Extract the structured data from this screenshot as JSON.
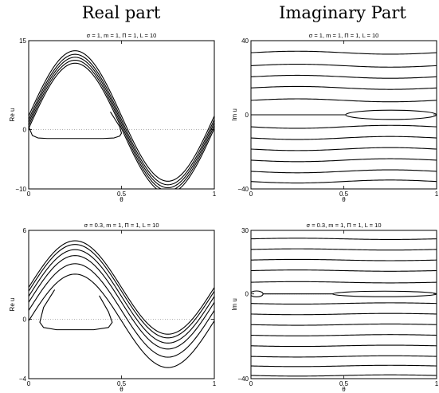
{
  "headers": {
    "left": "Real part",
    "right": "Imaginary Part"
  },
  "chart_data": [
    {
      "id": "re1",
      "type": "line",
      "title": "σ = 1, m = 1, Π = 1, L = 10",
      "xlabel": "θ",
      "ylabel": "Re u",
      "xlim": [
        0,
        1
      ],
      "ylim": [
        -10,
        15
      ],
      "xticks": [
        "0",
        "0.5",
        "1"
      ],
      "yticks": [
        "15",
        "0",
        "−10"
      ],
      "series": [
        {
          "kind": "sine",
          "A": 11.0,
          "c": 2.3
        },
        {
          "kind": "sine",
          "A": 11.0,
          "c": 1.7
        },
        {
          "kind": "sine",
          "A": 11.0,
          "c": 1.2
        },
        {
          "kind": "sine",
          "A": 11.0,
          "c": 0.7
        },
        {
          "kind": "sine",
          "A": 11.0,
          "c": 0.2
        },
        {
          "kind": "loop",
          "x": [
            0,
            0.02,
            0.05,
            0.1,
            0.2,
            0.3,
            0.4,
            0.46,
            0.49,
            0.5,
            0.49,
            0.46,
            0.44
          ],
          "y": [
            0.5,
            -1.0,
            -1.4,
            -1.5,
            -1.5,
            -1.5,
            -1.5,
            -1.4,
            -1.1,
            -0.6,
            0.5,
            2.0,
            3.0
          ]
        }
      ]
    },
    {
      "id": "im1",
      "type": "line",
      "title": "σ = 1, m = 1, Π = 1, L = 10",
      "xlabel": "θ",
      "ylabel": "Im u",
      "xlim": [
        0,
        1
      ],
      "ylim": [
        -40,
        40
      ],
      "xticks": [
        "0",
        "0.5",
        "1"
      ],
      "yticks": [
        "40",
        "0",
        "−40"
      ],
      "series": [
        {
          "kind": "flat",
          "levels": [
            33.5,
            26.5,
            20.5,
            14.5,
            7.8,
            -6.5,
            -12.5,
            -18.5,
            -24.5,
            -30.5,
            -36.0
          ],
          "wobble": 0.8
        },
        {
          "kind": "zero",
          "x0": 0.5
        },
        {
          "kind": "ellipse",
          "cx": 0.755,
          "cy": 0,
          "rx": 0.245,
          "ry": 2.5
        }
      ]
    },
    {
      "id": "re2",
      "type": "line",
      "title": "σ = 0.3, m = 1, Π = 1, L = 10",
      "xlabel": "θ",
      "ylabel": "Re u",
      "xlim": [
        0,
        1
      ],
      "ylim": [
        -4,
        6
      ],
      "xticks": [
        "0",
        "0.5",
        "1"
      ],
      "yticks": [
        "6",
        "0",
        "−4"
      ],
      "series": [
        {
          "kind": "sine",
          "A": 3.15,
          "c": 2.15
        },
        {
          "kind": "sine",
          "A": 3.15,
          "c": 1.9
        },
        {
          "kind": "sine",
          "A": 3.15,
          "c": 1.55
        },
        {
          "kind": "sine",
          "A": 3.15,
          "c": 1.15
        },
        {
          "kind": "sine",
          "A": 3.15,
          "c": 0.6
        },
        {
          "kind": "sine",
          "A": 3.15,
          "c": -0.1
        },
        {
          "kind": "loop",
          "x": [
            0.14,
            0.08,
            0.06,
            0.08,
            0.15,
            0.25,
            0.35,
            0.43,
            0.45,
            0.43,
            0.38
          ],
          "y": [
            2.0,
            0.8,
            -0.2,
            -0.55,
            -0.7,
            -0.7,
            -0.7,
            -0.55,
            -0.2,
            0.5,
            1.6
          ]
        }
      ]
    },
    {
      "id": "im2",
      "type": "line",
      "title": "σ = 0.3, m = 1, Π = 1, L = 10",
      "xlabel": "θ",
      "ylabel": "Im u",
      "xlim": [
        0,
        1
      ],
      "ylim": [
        -40,
        30
      ],
      "xticks": [
        "0",
        "0.5",
        "1"
      ],
      "yticks": [
        "30",
        "0",
        "−40"
      ],
      "series": [
        {
          "kind": "flat",
          "levels": [
            26.0,
            21.0,
            16.0,
            11.0,
            5.5,
            -4.5,
            -9.5,
            -14.5,
            -19.5,
            -24.5,
            -29.5,
            -34.0,
            -38.5
          ],
          "wobble": 0.3
        },
        {
          "kind": "zero",
          "x0": 0.0
        },
        {
          "kind": "ellipse",
          "cx": 0.72,
          "cy": 0,
          "rx": 0.28,
          "ry": 1.3
        },
        {
          "kind": "ellipse",
          "cx": 0.03,
          "cy": 0,
          "rx": 0.035,
          "ry": 1.4
        }
      ]
    }
  ]
}
